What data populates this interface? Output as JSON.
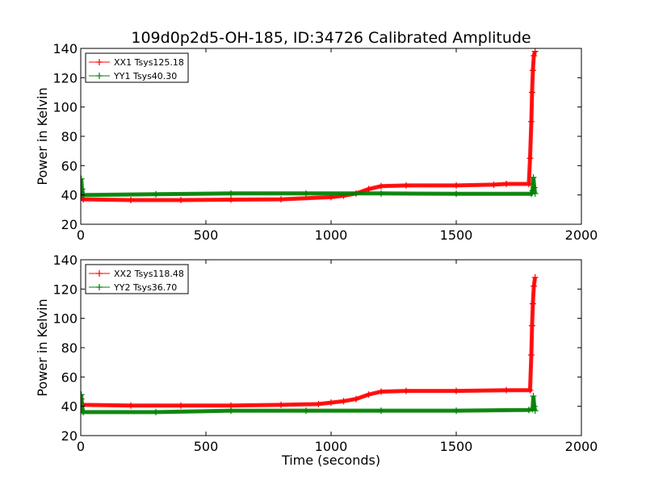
{
  "colors": {
    "red": "#ff0000",
    "green": "#008000"
  },
  "chart_data": [
    {
      "type": "line",
      "title": "109d0p2d5-OH-185, ID:34726 Calibrated Amplitude",
      "xlabel": "",
      "ylabel": "Power in Kelvin",
      "xlim": [
        0,
        2000
      ],
      "ylim": [
        20,
        140
      ],
      "xticks": [
        "0",
        "500",
        "1000",
        "1500",
        "2000"
      ],
      "yticks": [
        "20",
        "40",
        "60",
        "80",
        "100",
        "120",
        "140"
      ],
      "grid": false,
      "legend": "top-left",
      "series": [
        {
          "name": "XX1 Tsys125.18",
          "color": "#ff0000",
          "x": [
            0,
            2,
            4,
            10,
            200,
            400,
            600,
            800,
            1000,
            1050,
            1100,
            1150,
            1200,
            1300,
            1500,
            1650,
            1700,
            1790,
            1795,
            1800,
            1803,
            1806,
            1810,
            1815
          ],
          "y": [
            40,
            44,
            38,
            37,
            36.5,
            36.5,
            36.8,
            37,
            38.5,
            39.5,
            41,
            44,
            46,
            46.5,
            46.5,
            47,
            47.5,
            47.5,
            65,
            90,
            110,
            125,
            135,
            138
          ]
        },
        {
          "name": "YY1 Tsys40.30",
          "color": "#008000",
          "x": [
            0,
            2,
            5,
            10,
            300,
            600,
            900,
            1200,
            1500,
            1800,
            1805,
            1808,
            1812,
            1815
          ],
          "y": [
            40,
            51,
            44,
            40,
            40.5,
            41,
            41,
            41,
            40.8,
            40.8,
            43,
            52,
            45,
            41
          ]
        }
      ]
    },
    {
      "type": "line",
      "title": "",
      "xlabel": "Time (seconds)",
      "ylabel": "Power in Kelvin",
      "xlim": [
        0,
        2000
      ],
      "ylim": [
        20,
        140
      ],
      "xticks": [
        "0",
        "500",
        "1000",
        "1500",
        "2000"
      ],
      "yticks": [
        "20",
        "40",
        "60",
        "80",
        "100",
        "120",
        "140"
      ],
      "grid": false,
      "legend": "top-left",
      "series": [
        {
          "name": "XX2 Tsys118.48",
          "color": "#ff0000",
          "x": [
            0,
            2,
            5,
            10,
            200,
            400,
            600,
            800,
            950,
            1000,
            1050,
            1100,
            1150,
            1200,
            1300,
            1500,
            1700,
            1795,
            1800,
            1803,
            1806,
            1810,
            1815
          ],
          "y": [
            41,
            45,
            41,
            41,
            40.5,
            40.5,
            40.5,
            41,
            41.5,
            42.5,
            43.5,
            45,
            48,
            50,
            50.5,
            50.5,
            51,
            51,
            75,
            95,
            110,
            122,
            128
          ]
        },
        {
          "name": "YY2 Tsys36.70",
          "color": "#008000",
          "x": [
            0,
            2,
            5,
            10,
            300,
            600,
            900,
            1200,
            1500,
            1790,
            1805,
            1808,
            1812,
            1815
          ],
          "y": [
            36,
            48,
            40,
            36,
            36,
            37,
            37,
            37,
            37,
            37.5,
            38,
            47,
            40,
            37
          ]
        }
      ]
    }
  ]
}
